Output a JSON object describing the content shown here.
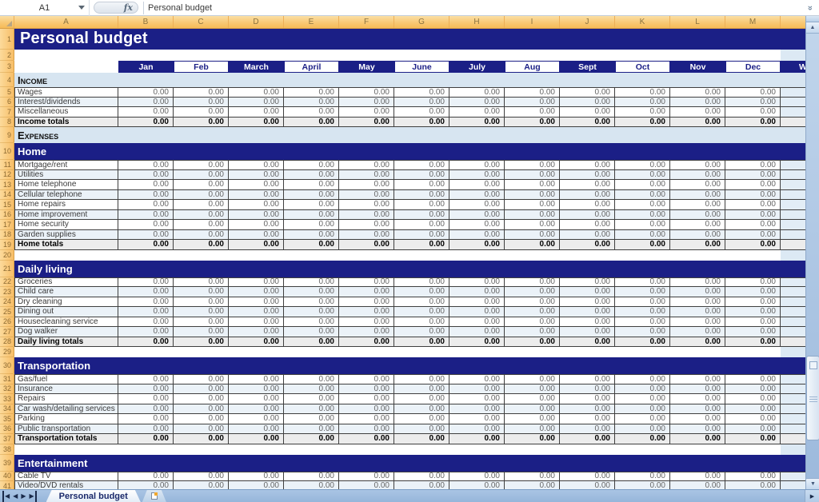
{
  "window": {
    "formula_bar": {
      "cell_ref": "A1",
      "fx": "fx",
      "value": "Personal budget",
      "expand_icon": "«"
    },
    "column_headers": [
      "A",
      "B",
      "C",
      "D",
      "E",
      "F",
      "G",
      "H",
      "I",
      "J",
      "K",
      "L",
      "M"
    ],
    "scrollbar": {
      "up_arrow": "▲",
      "down_arrow": "▼"
    }
  },
  "sheet": {
    "title": "Personal budget",
    "months": [
      "Jan",
      "Feb",
      "March",
      "April",
      "May",
      "June",
      "July",
      "Aug",
      "Sept",
      "Oct",
      "Nov",
      "Dec"
    ],
    "partial_next_header": "W",
    "zero": "0.00",
    "rows": [
      {
        "n": 1,
        "type": "title"
      },
      {
        "n": 2,
        "type": "blank"
      },
      {
        "n": 3,
        "type": "months"
      },
      {
        "n": 4,
        "type": "caption",
        "label": "Income"
      },
      {
        "n": 5,
        "type": "item",
        "label": "Wages"
      },
      {
        "n": 6,
        "type": "item",
        "label": "Interest/dividends"
      },
      {
        "n": 7,
        "type": "item",
        "label": "Miscellaneous"
      },
      {
        "n": 8,
        "type": "total",
        "label": "Income totals"
      },
      {
        "n": 9,
        "type": "caption",
        "label": "Expenses"
      },
      {
        "n": 10,
        "type": "banner",
        "label": "Home"
      },
      {
        "n": 11,
        "type": "item",
        "label": "Mortgage/rent"
      },
      {
        "n": 12,
        "type": "item",
        "label": "Utilities"
      },
      {
        "n": 13,
        "type": "item",
        "label": "Home telephone"
      },
      {
        "n": 14,
        "type": "item",
        "label": "Cellular telephone"
      },
      {
        "n": 15,
        "type": "item",
        "label": "Home repairs"
      },
      {
        "n": 16,
        "type": "item",
        "label": "Home improvement"
      },
      {
        "n": 17,
        "type": "item",
        "label": "Home security"
      },
      {
        "n": 18,
        "type": "item",
        "label": "Garden supplies"
      },
      {
        "n": 19,
        "type": "total",
        "label": "Home totals"
      },
      {
        "n": 20,
        "type": "blank"
      },
      {
        "n": 21,
        "type": "banner",
        "label": "Daily living"
      },
      {
        "n": 22,
        "type": "item",
        "label": "Groceries"
      },
      {
        "n": 23,
        "type": "item",
        "label": "Child care"
      },
      {
        "n": 24,
        "type": "item",
        "label": "Dry cleaning"
      },
      {
        "n": 25,
        "type": "item",
        "label": "Dining out"
      },
      {
        "n": 26,
        "type": "item",
        "label": "Housecleaning service"
      },
      {
        "n": 27,
        "type": "item",
        "label": "Dog walker"
      },
      {
        "n": 28,
        "type": "total",
        "label": "Daily living totals"
      },
      {
        "n": 29,
        "type": "blank"
      },
      {
        "n": 30,
        "type": "banner",
        "label": "Transportation"
      },
      {
        "n": 31,
        "type": "item",
        "label": "Gas/fuel"
      },
      {
        "n": 32,
        "type": "item",
        "label": "Insurance"
      },
      {
        "n": 33,
        "type": "item",
        "label": "Repairs"
      },
      {
        "n": 34,
        "type": "item",
        "label": "Car wash/detailing services"
      },
      {
        "n": 35,
        "type": "item",
        "label": "Parking"
      },
      {
        "n": 36,
        "type": "item",
        "label": "Public transportation"
      },
      {
        "n": 37,
        "type": "total",
        "label": "Transportation totals"
      },
      {
        "n": 38,
        "type": "blank"
      },
      {
        "n": 39,
        "type": "banner",
        "label": "Entertainment"
      },
      {
        "n": 40,
        "type": "item",
        "label": "Cable TV"
      },
      {
        "n": 41,
        "type": "item",
        "label": "Video/DVD rentals"
      }
    ]
  },
  "tabs": {
    "active": "Personal budget",
    "nav_prev": "◀",
    "nav_next": "▶"
  },
  "colors": {
    "navy": "#1b1f86",
    "caption_blue": "#d7e5f1",
    "band_blue": "#ebf2f8",
    "total_gray": "#ececec",
    "header_orange": "#f8c875",
    "tabbar_blue": "#9fbcdf"
  }
}
